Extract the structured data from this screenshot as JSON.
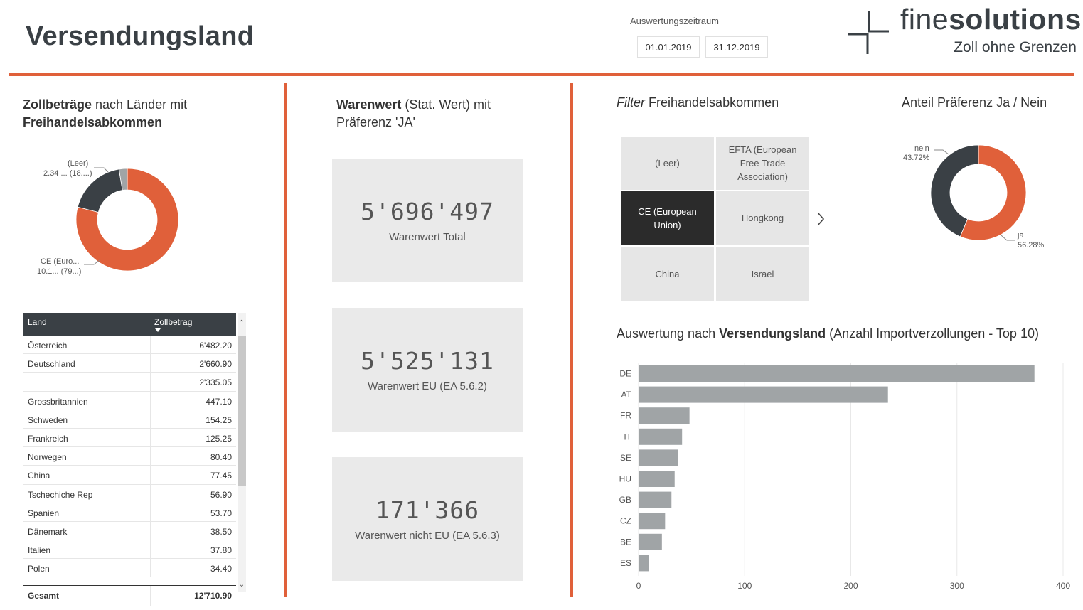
{
  "header": {
    "title": "Versendungsland",
    "period_label": "Auswertungszeitraum",
    "date_from": "01.01.2019",
    "date_to": "31.12.2019",
    "logo_name_light": "fine",
    "logo_name_bold": "solutions",
    "logo_tagline": "Zoll ohne Grenzen"
  },
  "colors": {
    "accent": "#e0603a",
    "dark": "#3a4045",
    "bar": "#a0a4a6",
    "tile": "#e6e6e6",
    "tile_selected": "#2b2b2b"
  },
  "left_panel": {
    "title_bold1": "Zollbeträge",
    "title_rest1": " nach Länder mit",
    "title_bold2": "Freihandelsabkommen",
    "donut_labels": {
      "leer_name": "(Leer)",
      "leer_value": "2.34 ... (18....)",
      "ce_name": "CE (Euro...",
      "ce_value": "10.1... (79...)"
    },
    "table": {
      "col_land": "Land",
      "col_zoll": "Zollbetrag",
      "rows": [
        {
          "land": "Österreich",
          "zoll": "6'482.20"
        },
        {
          "land": "Deutschland",
          "zoll": "2'660.90"
        },
        {
          "land": "",
          "zoll": "2'335.05"
        },
        {
          "land": "Grossbritannien",
          "zoll": "447.10"
        },
        {
          "land": "Schweden",
          "zoll": "154.25"
        },
        {
          "land": "Frankreich",
          "zoll": "125.25"
        },
        {
          "land": "Norwegen",
          "zoll": "80.40"
        },
        {
          "land": "China",
          "zoll": "77.45"
        },
        {
          "land": "Tschechiche Rep",
          "zoll": "56.90"
        },
        {
          "land": "Spanien",
          "zoll": "53.70"
        },
        {
          "land": "Dänemark",
          "zoll": "38.50"
        },
        {
          "land": "Italien",
          "zoll": "37.80"
        },
        {
          "land": "Polen",
          "zoll": "34.40"
        }
      ],
      "total_label": "Gesamt",
      "total_value": "12'710.90"
    }
  },
  "middle_panel": {
    "title_bold": "Warenwert",
    "title_rest1": " (Stat. Wert) mit",
    "title_line2": "Präferenz 'JA'",
    "kpis": [
      {
        "value": "5'696'497",
        "label": "Warenwert Total"
      },
      {
        "value": "5'525'131",
        "label": "Warenwert EU (EA 5.6.2)"
      },
      {
        "value": "171'366",
        "label": "Warenwert nicht EU (EA 5.6.3)"
      }
    ]
  },
  "right_panel": {
    "filter_title_italic": "Filter",
    "filter_title_rest": " Freihandelsabkommen",
    "slicer_tiles": [
      {
        "label": "(Leer)",
        "selected": false
      },
      {
        "label": "EFTA (European Free Trade Association)",
        "selected": false
      },
      {
        "label": "CE (European Union)",
        "selected": true
      },
      {
        "label": "Hongkong",
        "selected": false
      },
      {
        "label": "China",
        "selected": false
      },
      {
        "label": "Israel",
        "selected": false
      }
    ],
    "pref_title": "Anteil Präferenz Ja / Nein",
    "pref_labels": {
      "nein_name": "nein",
      "nein_value": "43.72%",
      "ja_name": "ja",
      "ja_value": "56.28%"
    },
    "bar_title_pre": "Auswertung nach ",
    "bar_title_bold": "Versendungsland",
    "bar_title_post": " (Anzahl Importverzollungen - Top 10)"
  },
  "chart_data": [
    {
      "type": "pie",
      "subtype": "donut",
      "title": "Zollbeträge nach Länder mit Freihandelsabkommen",
      "categories": [
        "CE (Euro...",
        "(Leer)",
        "other"
      ],
      "values": [
        79.0,
        18.4,
        2.6
      ],
      "colors": [
        "#e0603a",
        "#3a4045",
        "#a0a4a6"
      ]
    },
    {
      "type": "pie",
      "subtype": "donut",
      "title": "Anteil Präferenz Ja / Nein",
      "categories": [
        "ja",
        "nein"
      ],
      "values": [
        56.28,
        43.72
      ],
      "colors": [
        "#e0603a",
        "#3a4045"
      ]
    },
    {
      "type": "bar",
      "orientation": "horizontal",
      "title": "Auswertung nach Versendungsland (Anzahl Importverzollungen - Top 10)",
      "categories": [
        "DE",
        "AT",
        "FR",
        "IT",
        "SE",
        "HU",
        "GB",
        "CZ",
        "BE",
        "ES"
      ],
      "values": [
        373,
        235,
        48,
        41,
        37,
        34,
        31,
        25,
        22,
        10
      ],
      "xlim": [
        0,
        400
      ],
      "xticks": [
        0,
        100,
        200,
        300,
        400
      ],
      "grid": true
    }
  ]
}
